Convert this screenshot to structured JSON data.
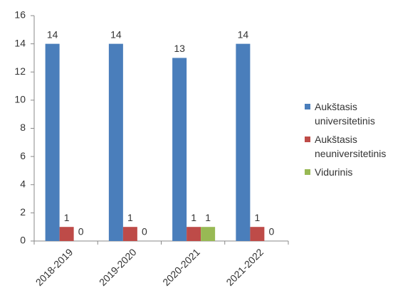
{
  "chart_data": {
    "type": "bar",
    "categories": [
      "2018-2019",
      "2019-2020",
      "2020-2021",
      "2021-2022"
    ],
    "series": [
      {
        "name": "Aukštasis universitetinis",
        "color": "#4a7ebb",
        "values": [
          14,
          14,
          13,
          14
        ]
      },
      {
        "name": "Aukštasis neuniversitetinis",
        "color": "#be4b48",
        "values": [
          1,
          1,
          1,
          1
        ]
      },
      {
        "name": "Vidurinis",
        "color": "#98b954",
        "values": [
          0,
          0,
          1,
          0
        ]
      }
    ],
    "ylim": [
      0,
      16
    ],
    "yticks": [
      0,
      2,
      4,
      6,
      8,
      10,
      12,
      14,
      16
    ],
    "grid": false,
    "data_labels": true,
    "legend": "right"
  }
}
